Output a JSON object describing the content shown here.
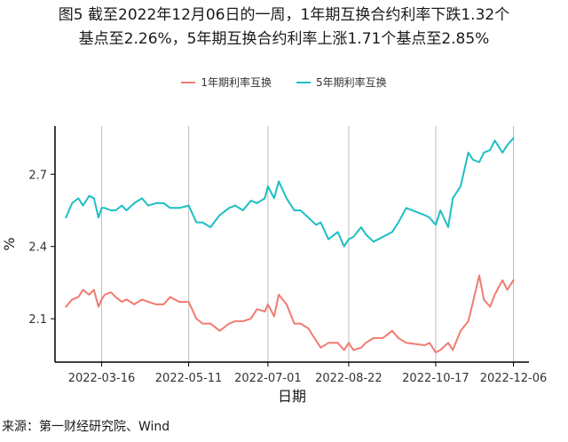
{
  "figure": {
    "title_line1": "图5  截至2022年12月06日的一周，1年期互换合约利率下跌1.32个",
    "title_line2": "基点至2.26%，5年期互换合约利率上涨1.71个基点至2.85%",
    "source": "来源：第一财经研究院、Wind"
  },
  "colors": {
    "series1": "#F07B72",
    "series2": "#1DBFC4",
    "grid": "#BDBDBD",
    "axis": "#000000"
  },
  "chart_data": {
    "type": "line",
    "xlabel": "日期",
    "ylabel": "%",
    "ylim": [
      1.92,
      2.9
    ],
    "yticks": [
      2.1,
      2.4,
      2.7
    ],
    "yticklabels": [
      "2.1",
      "2.4",
      "2.7"
    ],
    "xlim": [
      "2022-02-14",
      "2022-12-16"
    ],
    "xticks": [
      "2022-03-16",
      "2022-05-11",
      "2022-07-01",
      "2022-08-22",
      "2022-10-17",
      "2022-12-06"
    ],
    "legend_position": "top",
    "grid": "vertical",
    "series": [
      {
        "name": "1年期利率互换",
        "x": [
          "2022-02-21",
          "2022-02-25",
          "2022-03-01",
          "2022-03-04",
          "2022-03-08",
          "2022-03-11",
          "2022-03-14",
          "2022-03-16",
          "2022-03-18",
          "2022-03-22",
          "2022-03-25",
          "2022-03-29",
          "2022-04-01",
          "2022-04-06",
          "2022-04-11",
          "2022-04-15",
          "2022-04-20",
          "2022-04-25",
          "2022-04-29",
          "2022-05-05",
          "2022-05-11",
          "2022-05-16",
          "2022-05-20",
          "2022-05-25",
          "2022-05-31",
          "2022-06-06",
          "2022-06-10",
          "2022-06-15",
          "2022-06-20",
          "2022-06-24",
          "2022-06-29",
          "2022-07-01",
          "2022-07-05",
          "2022-07-08",
          "2022-07-13",
          "2022-07-18",
          "2022-07-22",
          "2022-07-27",
          "2022-08-01",
          "2022-08-04",
          "2022-08-09",
          "2022-08-15",
          "2022-08-19",
          "2022-08-22",
          "2022-08-25",
          "2022-08-30",
          "2022-09-02",
          "2022-09-07",
          "2022-09-13",
          "2022-09-19",
          "2022-09-23",
          "2022-09-28",
          "2022-10-10",
          "2022-10-13",
          "2022-10-17",
          "2022-10-20",
          "2022-10-25",
          "2022-10-28",
          "2022-11-02",
          "2022-11-07",
          "2022-11-10",
          "2022-11-14",
          "2022-11-17",
          "2022-11-21",
          "2022-11-24",
          "2022-11-29",
          "2022-12-02",
          "2022-12-06"
        ],
        "values": [
          2.15,
          2.18,
          2.19,
          2.22,
          2.2,
          2.22,
          2.15,
          2.18,
          2.2,
          2.21,
          2.19,
          2.17,
          2.18,
          2.16,
          2.18,
          2.17,
          2.16,
          2.16,
          2.19,
          2.17,
          2.17,
          2.1,
          2.08,
          2.08,
          2.05,
          2.08,
          2.09,
          2.09,
          2.1,
          2.14,
          2.13,
          2.16,
          2.11,
          2.2,
          2.16,
          2.08,
          2.08,
          2.06,
          2.01,
          1.98,
          2.0,
          2.0,
          1.97,
          2.0,
          1.97,
          1.98,
          2.0,
          2.02,
          2.02,
          2.05,
          2.02,
          2.0,
          1.99,
          2.0,
          1.96,
          1.97,
          2.0,
          1.97,
          2.05,
          2.09,
          2.17,
          2.28,
          2.18,
          2.15,
          2.2,
          2.26,
          2.22,
          2.26
        ]
      },
      {
        "name": "5年期利率互换",
        "x": [
          "2022-02-21",
          "2022-02-25",
          "2022-03-01",
          "2022-03-04",
          "2022-03-08",
          "2022-03-11",
          "2022-03-14",
          "2022-03-16",
          "2022-03-18",
          "2022-03-22",
          "2022-03-25",
          "2022-03-29",
          "2022-04-01",
          "2022-04-06",
          "2022-04-11",
          "2022-04-15",
          "2022-04-20",
          "2022-04-25",
          "2022-04-29",
          "2022-05-05",
          "2022-05-11",
          "2022-05-16",
          "2022-05-20",
          "2022-05-25",
          "2022-05-31",
          "2022-06-06",
          "2022-06-10",
          "2022-06-15",
          "2022-06-20",
          "2022-06-24",
          "2022-06-29",
          "2022-07-01",
          "2022-07-05",
          "2022-07-08",
          "2022-07-13",
          "2022-07-18",
          "2022-07-22",
          "2022-07-27",
          "2022-08-01",
          "2022-08-04",
          "2022-08-09",
          "2022-08-15",
          "2022-08-19",
          "2022-08-22",
          "2022-08-25",
          "2022-08-30",
          "2022-09-02",
          "2022-09-07",
          "2022-09-13",
          "2022-09-19",
          "2022-09-23",
          "2022-09-28",
          "2022-10-10",
          "2022-10-13",
          "2022-10-17",
          "2022-10-20",
          "2022-10-25",
          "2022-10-28",
          "2022-11-02",
          "2022-11-07",
          "2022-11-10",
          "2022-11-14",
          "2022-11-17",
          "2022-11-21",
          "2022-11-24",
          "2022-11-29",
          "2022-12-02",
          "2022-12-06"
        ],
        "values": [
          2.52,
          2.58,
          2.6,
          2.57,
          2.61,
          2.6,
          2.52,
          2.56,
          2.56,
          2.55,
          2.55,
          2.57,
          2.55,
          2.58,
          2.6,
          2.57,
          2.58,
          2.58,
          2.56,
          2.56,
          2.57,
          2.5,
          2.5,
          2.48,
          2.53,
          2.56,
          2.57,
          2.55,
          2.59,
          2.58,
          2.6,
          2.65,
          2.6,
          2.67,
          2.6,
          2.55,
          2.55,
          2.52,
          2.49,
          2.5,
          2.43,
          2.46,
          2.4,
          2.43,
          2.44,
          2.48,
          2.45,
          2.42,
          2.44,
          2.46,
          2.5,
          2.56,
          2.53,
          2.52,
          2.49,
          2.55,
          2.48,
          2.6,
          2.65,
          2.79,
          2.76,
          2.75,
          2.79,
          2.8,
          2.84,
          2.79,
          2.82,
          2.85
        ]
      }
    ]
  }
}
